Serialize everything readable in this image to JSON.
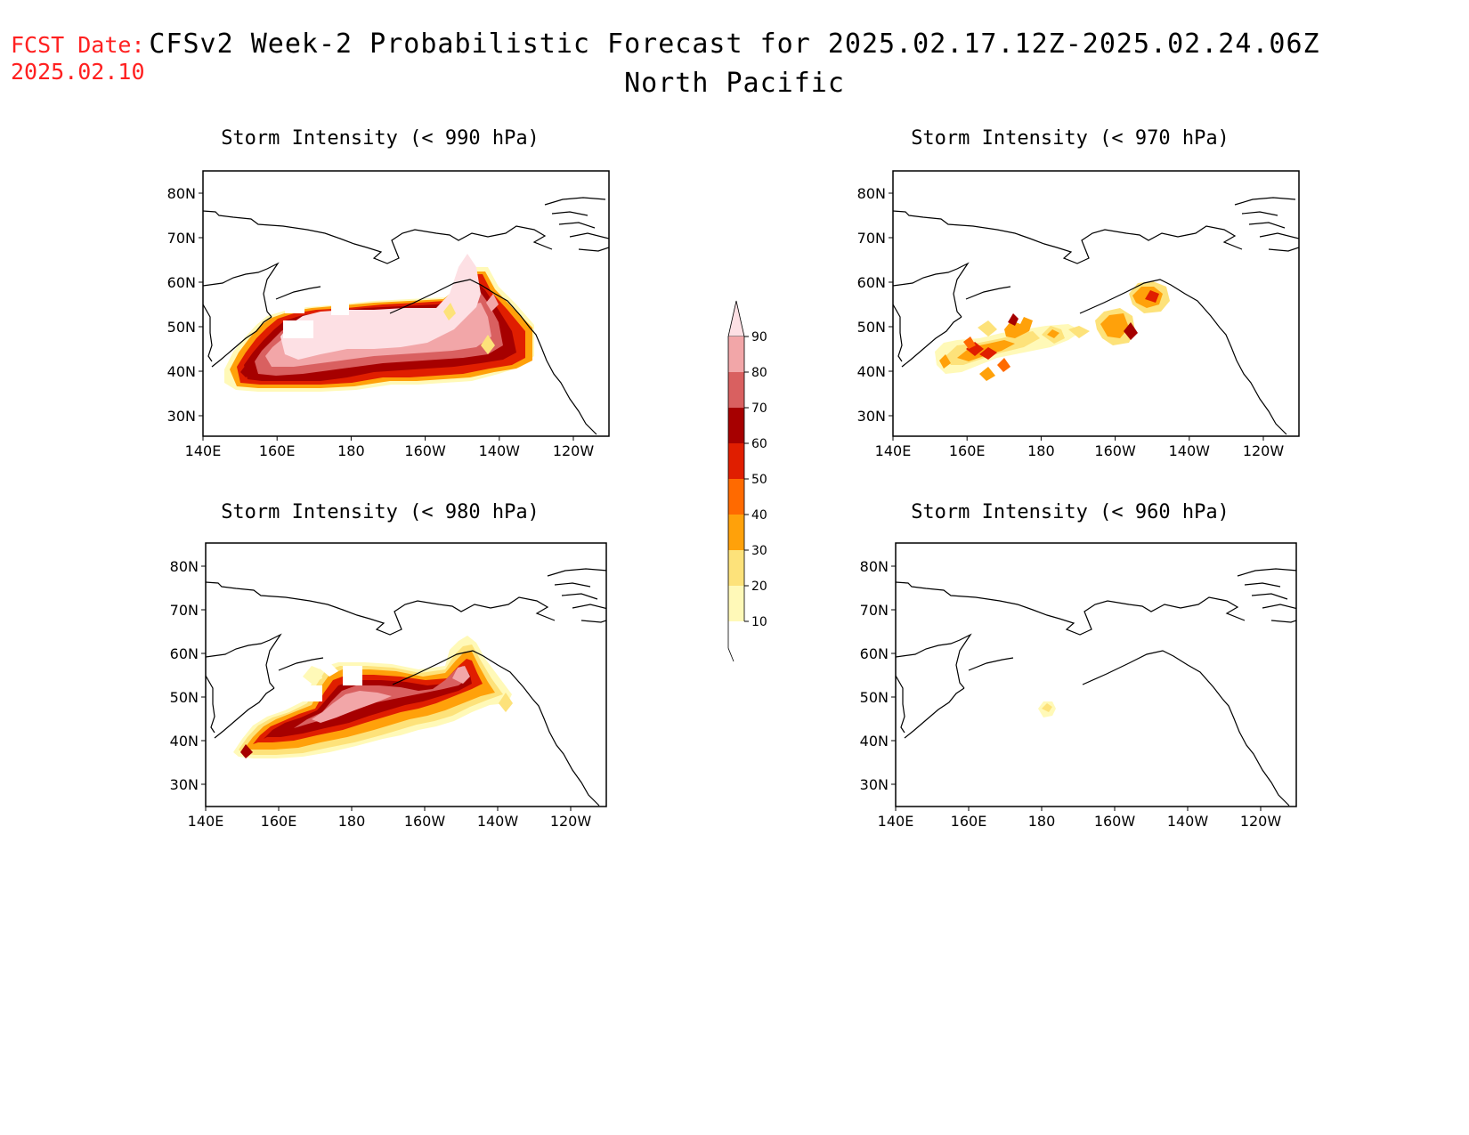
{
  "header": {
    "fcst_label": "FCST Date:",
    "fcst_date": "2025.02.10",
    "title_line1": "CFSv2 Week-2 Probabilistic Forecast for 2025.02.17.12Z-2025.02.24.06Z",
    "title_line2": "North Pacific"
  },
  "map_axes": {
    "lat_ticks": [
      "80N",
      "70N",
      "60N",
      "50N",
      "40N",
      "30N"
    ],
    "lon_ticks": [
      "140E",
      "160E",
      "180",
      "160W",
      "140W",
      "120W"
    ]
  },
  "panels": [
    {
      "id": "p990",
      "title": "Storm Intensity (< 990 hPa)"
    },
    {
      "id": "p970",
      "title": "Storm Intensity (< 970 hPa)"
    },
    {
      "id": "p980",
      "title": "Storm Intensity (< 980 hPa)"
    },
    {
      "id": "p960",
      "title": "Storm Intensity (< 960 hPa)"
    }
  ],
  "colorbar": {
    "levels": [
      "10",
      "20",
      "30",
      "40",
      "50",
      "60",
      "70",
      "80",
      "90"
    ],
    "colors": [
      "#fff9b8",
      "#fde27a",
      "#ffa10a",
      "#ff6a00",
      "#e01e00",
      "#a60000",
      "#d96060",
      "#f2a6a8",
      "#fde0e4"
    ]
  }
}
